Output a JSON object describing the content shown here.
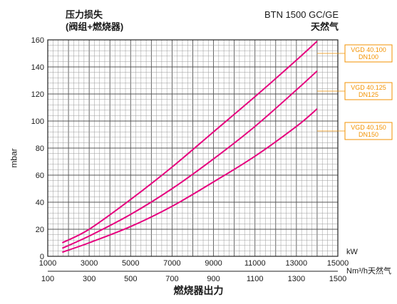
{
  "header": {
    "title_line1": "压力损失",
    "title_line2": "(阀组+燃烧器)",
    "model": "BTN 1500 GC/GE",
    "fuel": "天然气"
  },
  "axes": {
    "ylabel": "mbar",
    "xlabel": "燃烧器出力",
    "x_unit_kw": "kW",
    "x_unit_nm3": "Nm³/h天然气"
  },
  "chart_data": {
    "type": "line",
    "title": "",
    "xlabel": "燃烧器出力",
    "ylabel": "mbar",
    "xlim": [
      1000,
      15000
    ],
    "ylim": [
      0,
      160
    ],
    "x_ticks_kw": [
      "1000",
      "3000",
      "5000",
      "7000",
      "9000",
      "11000",
      "13000",
      "15000"
    ],
    "x_ticks_nm3": [
      "100",
      "300",
      "500",
      "700",
      "900",
      "1100",
      "1300",
      "1500"
    ],
    "y_ticks": [
      "0",
      "20",
      "40",
      "60",
      "80",
      "100",
      "120",
      "140",
      "160"
    ],
    "grid": true,
    "line_color": "#e6007e",
    "series": [
      {
        "name": "VGD 40.100 DN100",
        "label_line1": "VGD 40.100",
        "label_line2": "DN100",
        "x": [
          1700,
          3000,
          5000,
          7000,
          9000,
          11000,
          13000,
          14000
        ],
        "y": [
          10,
          20,
          42,
          66,
          92,
          118,
          145,
          159
        ]
      },
      {
        "name": "VGD 40.125 DN125",
        "label_line1": "VGD 40.125",
        "label_line2": "DN125",
        "x": [
          1700,
          3000,
          5000,
          7000,
          9000,
          11000,
          13000,
          14000
        ],
        "y": [
          6,
          15,
          31,
          50,
          72,
          96,
          123,
          137
        ]
      },
      {
        "name": "VGD 40.150 DN150",
        "label_line1": "VGD 40.150",
        "label_line2": "DN150",
        "x": [
          1700,
          3000,
          5000,
          7000,
          9000,
          11000,
          13000,
          14000
        ],
        "y": [
          3,
          10,
          22,
          37,
          55,
          74,
          96,
          109
        ]
      }
    ]
  }
}
